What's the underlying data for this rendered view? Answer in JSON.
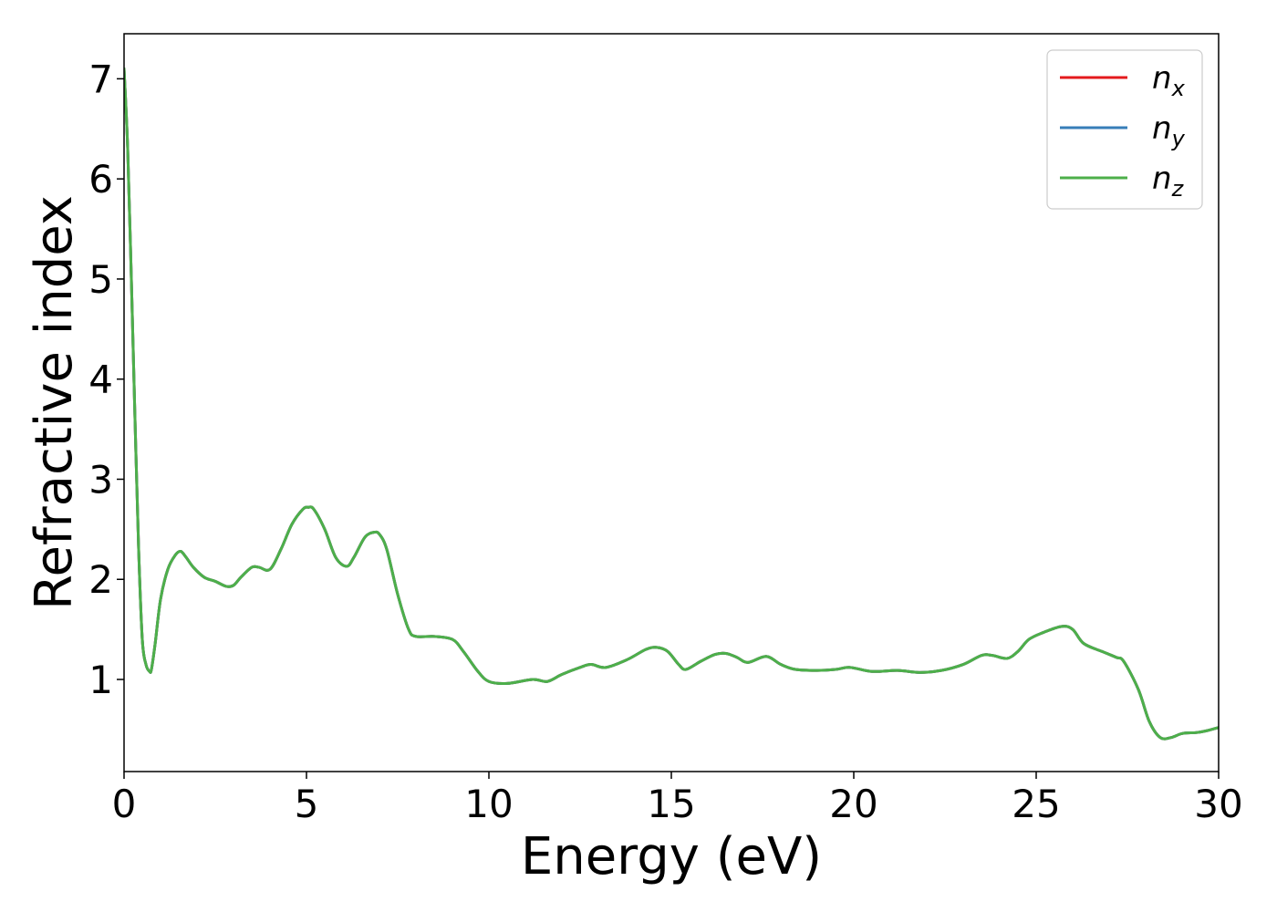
{
  "chart_data": {
    "type": "line",
    "xlabel": "Energy (eV)",
    "ylabel": "Refractive index",
    "xlim": [
      0,
      30
    ],
    "ylim": [
      0.08,
      7.45
    ],
    "xticks": [
      0,
      5,
      10,
      15,
      20,
      25,
      30
    ],
    "yticks": [
      1,
      2,
      3,
      4,
      5,
      6,
      7
    ],
    "grid": false,
    "legend_position": "top-right",
    "series": [
      {
        "name": "n",
        "subscript": "x",
        "color": "#e41a1c",
        "x": [
          0,
          0.1,
          0.2,
          0.3,
          0.4,
          0.5,
          0.6,
          0.7,
          0.75,
          0.85,
          1.0,
          1.2,
          1.4,
          1.55,
          1.7,
          1.9,
          2.2,
          2.5,
          2.8,
          3.0,
          3.2,
          3.5,
          3.7,
          4.0,
          4.3,
          4.6,
          4.9,
          5.05,
          5.2,
          5.5,
          5.8,
          6.1,
          6.3,
          6.6,
          6.85,
          7.0,
          7.2,
          7.5,
          7.8,
          8.0,
          8.5,
          9.0,
          9.3,
          9.7,
          10.0,
          10.5,
          11.2,
          11.6,
          12.0,
          12.5,
          12.8,
          13.2,
          13.8,
          14.3,
          14.6,
          14.9,
          15.2,
          15.4,
          15.8,
          16.2,
          16.5,
          16.8,
          17.1,
          17.6,
          18.0,
          18.4,
          19.0,
          19.5,
          19.9,
          20.5,
          21.2,
          21.8,
          22.4,
          23.0,
          23.5,
          23.8,
          24.2,
          24.5,
          24.8,
          25.2,
          25.7,
          26.0,
          26.3,
          26.8,
          27.2,
          27.4,
          27.8,
          28.1,
          28.4,
          28.7,
          29.0,
          29.4,
          29.7,
          30.0
        ],
        "values": [
          7.1,
          6.3,
          5.0,
          3.6,
          2.3,
          1.4,
          1.15,
          1.08,
          1.1,
          1.35,
          1.8,
          2.1,
          2.24,
          2.28,
          2.22,
          2.12,
          2.02,
          1.98,
          1.93,
          1.94,
          2.02,
          2.12,
          2.12,
          2.1,
          2.3,
          2.55,
          2.7,
          2.72,
          2.7,
          2.5,
          2.22,
          2.13,
          2.22,
          2.42,
          2.47,
          2.45,
          2.3,
          1.85,
          1.5,
          1.43,
          1.43,
          1.4,
          1.28,
          1.08,
          0.98,
          0.96,
          1.0,
          0.98,
          1.05,
          1.12,
          1.15,
          1.12,
          1.2,
          1.3,
          1.32,
          1.28,
          1.15,
          1.1,
          1.18,
          1.25,
          1.26,
          1.22,
          1.17,
          1.23,
          1.15,
          1.1,
          1.09,
          1.1,
          1.12,
          1.08,
          1.09,
          1.07,
          1.09,
          1.15,
          1.24,
          1.24,
          1.21,
          1.28,
          1.4,
          1.47,
          1.53,
          1.5,
          1.36,
          1.28,
          1.22,
          1.18,
          0.9,
          0.58,
          0.42,
          0.42,
          0.46,
          0.47,
          0.49,
          0.52
        ]
      },
      {
        "name": "n",
        "subscript": "y",
        "color": "#377eb8",
        "x": [
          0,
          0.1,
          0.2,
          0.3,
          0.4,
          0.5,
          0.6,
          0.7,
          0.75,
          0.85,
          1.0,
          1.2,
          1.4,
          1.55,
          1.7,
          1.9,
          2.2,
          2.5,
          2.8,
          3.0,
          3.2,
          3.5,
          3.7,
          4.0,
          4.3,
          4.6,
          4.9,
          5.05,
          5.2,
          5.5,
          5.8,
          6.1,
          6.3,
          6.6,
          6.85,
          7.0,
          7.2,
          7.5,
          7.8,
          8.0,
          8.5,
          9.0,
          9.3,
          9.7,
          10.0,
          10.5,
          11.2,
          11.6,
          12.0,
          12.5,
          12.8,
          13.2,
          13.8,
          14.3,
          14.6,
          14.9,
          15.2,
          15.4,
          15.8,
          16.2,
          16.5,
          16.8,
          17.1,
          17.6,
          18.0,
          18.4,
          19.0,
          19.5,
          19.9,
          20.5,
          21.2,
          21.8,
          22.4,
          23.0,
          23.5,
          23.8,
          24.2,
          24.5,
          24.8,
          25.2,
          25.7,
          26.0,
          26.3,
          26.8,
          27.2,
          27.4,
          27.8,
          28.1,
          28.4,
          28.7,
          29.0,
          29.4,
          29.7,
          30.0
        ],
        "values": [
          7.1,
          6.3,
          5.0,
          3.6,
          2.3,
          1.4,
          1.15,
          1.08,
          1.1,
          1.35,
          1.8,
          2.1,
          2.24,
          2.28,
          2.22,
          2.12,
          2.02,
          1.98,
          1.93,
          1.94,
          2.02,
          2.12,
          2.12,
          2.1,
          2.3,
          2.55,
          2.7,
          2.72,
          2.7,
          2.5,
          2.22,
          2.13,
          2.22,
          2.42,
          2.47,
          2.45,
          2.3,
          1.85,
          1.5,
          1.43,
          1.43,
          1.4,
          1.28,
          1.08,
          0.98,
          0.96,
          1.0,
          0.98,
          1.05,
          1.12,
          1.15,
          1.12,
          1.2,
          1.3,
          1.32,
          1.28,
          1.15,
          1.1,
          1.18,
          1.25,
          1.26,
          1.22,
          1.17,
          1.23,
          1.15,
          1.1,
          1.09,
          1.1,
          1.12,
          1.08,
          1.09,
          1.07,
          1.09,
          1.15,
          1.24,
          1.24,
          1.21,
          1.28,
          1.4,
          1.47,
          1.53,
          1.5,
          1.36,
          1.28,
          1.22,
          1.18,
          0.9,
          0.58,
          0.42,
          0.42,
          0.46,
          0.47,
          0.49,
          0.52
        ]
      },
      {
        "name": "n",
        "subscript": "z",
        "color": "#4daf4a",
        "x": [
          0,
          0.1,
          0.2,
          0.3,
          0.4,
          0.5,
          0.6,
          0.7,
          0.75,
          0.85,
          1.0,
          1.2,
          1.4,
          1.55,
          1.7,
          1.9,
          2.2,
          2.5,
          2.8,
          3.0,
          3.2,
          3.5,
          3.7,
          4.0,
          4.3,
          4.6,
          4.9,
          5.05,
          5.2,
          5.5,
          5.8,
          6.1,
          6.3,
          6.6,
          6.85,
          7.0,
          7.2,
          7.5,
          7.8,
          8.0,
          8.5,
          9.0,
          9.3,
          9.7,
          10.0,
          10.5,
          11.2,
          11.6,
          12.0,
          12.5,
          12.8,
          13.2,
          13.8,
          14.3,
          14.6,
          14.9,
          15.2,
          15.4,
          15.8,
          16.2,
          16.5,
          16.8,
          17.1,
          17.6,
          18.0,
          18.4,
          19.0,
          19.5,
          19.9,
          20.5,
          21.2,
          21.8,
          22.4,
          23.0,
          23.5,
          23.8,
          24.2,
          24.5,
          24.8,
          25.2,
          25.7,
          26.0,
          26.3,
          26.8,
          27.2,
          27.4,
          27.8,
          28.1,
          28.4,
          28.7,
          29.0,
          29.4,
          29.7,
          30.0
        ],
        "values": [
          7.1,
          6.3,
          5.0,
          3.6,
          2.3,
          1.4,
          1.15,
          1.08,
          1.1,
          1.35,
          1.8,
          2.1,
          2.24,
          2.28,
          2.22,
          2.12,
          2.02,
          1.98,
          1.93,
          1.94,
          2.02,
          2.12,
          2.12,
          2.1,
          2.3,
          2.55,
          2.7,
          2.72,
          2.7,
          2.5,
          2.22,
          2.13,
          2.22,
          2.42,
          2.47,
          2.45,
          2.3,
          1.85,
          1.5,
          1.43,
          1.43,
          1.4,
          1.28,
          1.08,
          0.98,
          0.96,
          1.0,
          0.98,
          1.05,
          1.12,
          1.15,
          1.12,
          1.2,
          1.3,
          1.32,
          1.28,
          1.15,
          1.1,
          1.18,
          1.25,
          1.26,
          1.22,
          1.17,
          1.23,
          1.15,
          1.1,
          1.09,
          1.1,
          1.12,
          1.08,
          1.09,
          1.07,
          1.09,
          1.15,
          1.24,
          1.24,
          1.21,
          1.28,
          1.4,
          1.47,
          1.53,
          1.5,
          1.36,
          1.28,
          1.22,
          1.18,
          0.9,
          0.58,
          0.42,
          0.42,
          0.46,
          0.47,
          0.49,
          0.52
        ]
      }
    ]
  }
}
